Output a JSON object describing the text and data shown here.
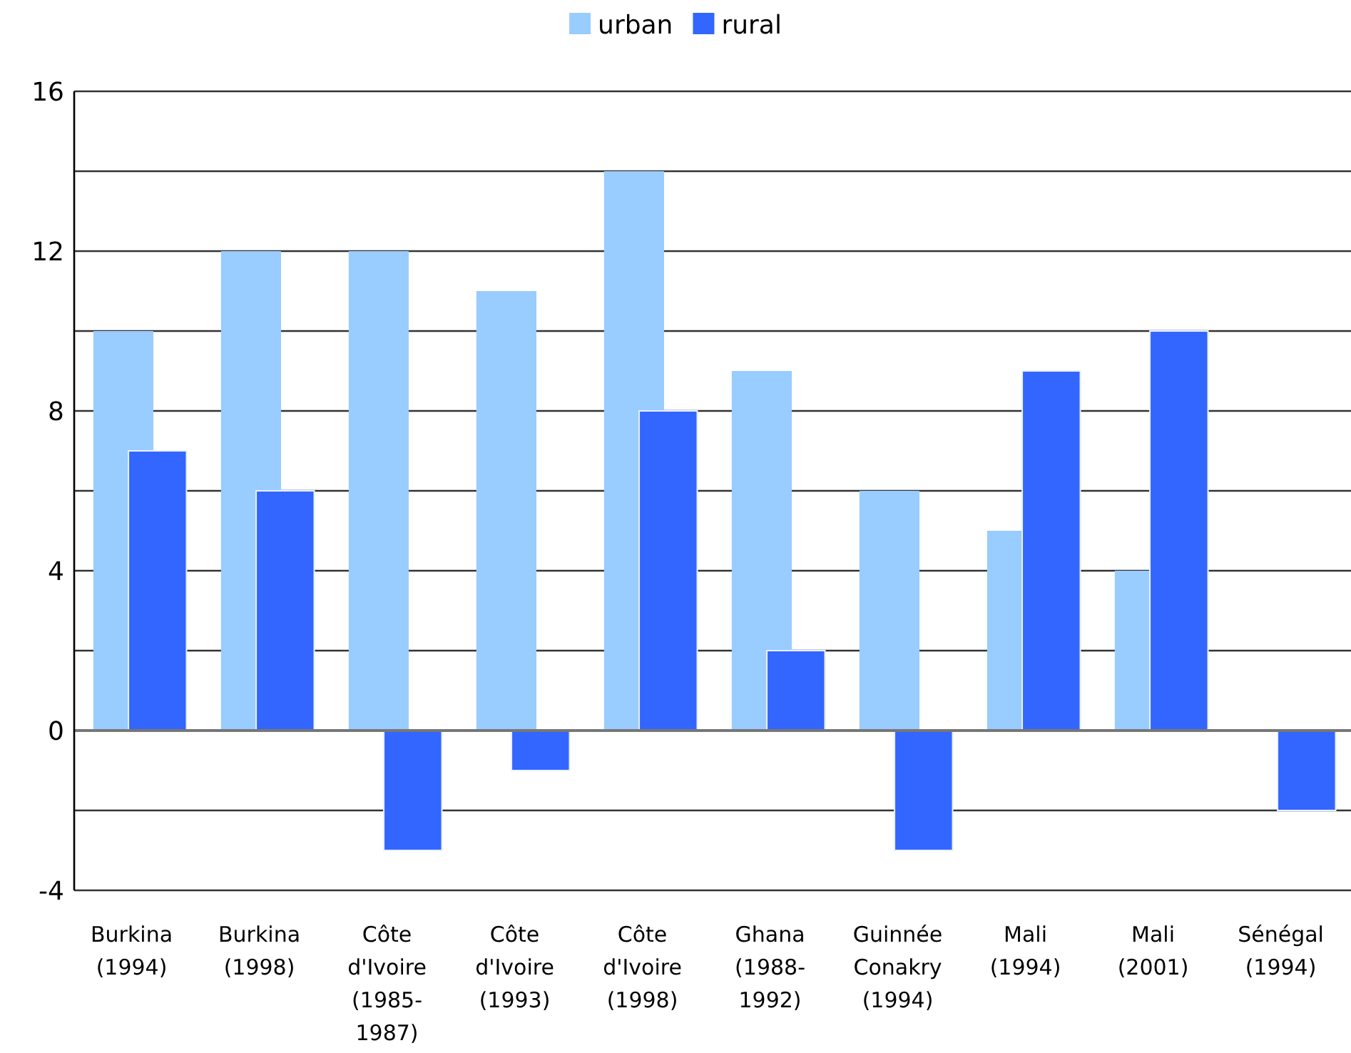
{
  "chart_data": {
    "type": "bar",
    "categories": [
      "Burkina (1994)",
      "Burkina (1998)",
      "Côte d'Ivoire (1985-1987)",
      "Côte d'Ivoire (1993)",
      "Côte d'Ivoire (1998)",
      "Ghana (1988-1992)",
      "Guinnée Conakry (1994)",
      "Mali (1994)",
      "Mali (2001)",
      "Sénégal (1994)"
    ],
    "series": [
      {
        "name": "urban",
        "color": "#99ccff",
        "values": [
          10,
          12,
          12,
          11,
          14,
          9,
          6,
          5,
          4,
          null
        ]
      },
      {
        "name": "rural",
        "color": "#3366ff",
        "values": [
          7,
          6,
          -3,
          -1,
          8,
          2,
          -3,
          9,
          10,
          -2
        ]
      }
    ],
    "ylim": [
      -4,
      16
    ],
    "yticks": [
      -4,
      {
        "value": -2,
        "label": null
      },
      0,
      {
        "value": 2,
        "label": null
      },
      4,
      {
        "value": 6,
        "label": null
      },
      8,
      {
        "value": 10,
        "label": null
      },
      12,
      {
        "value": 14,
        "label": null
      },
      16
    ],
    "grid": true,
    "legend": "top"
  }
}
